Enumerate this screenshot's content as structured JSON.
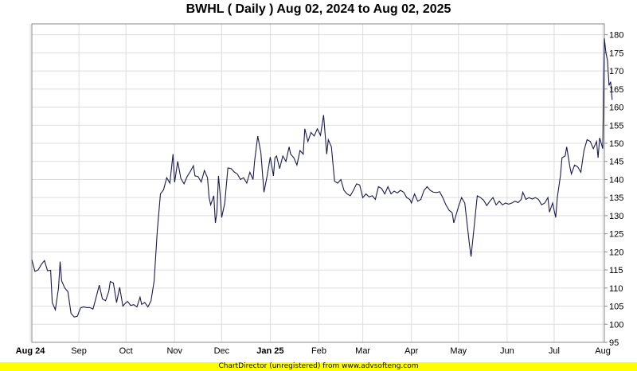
{
  "chart_data": {
    "type": "line",
    "title": "BWHL ( Daily ) Aug 02, 2024 to Aug 02, 2025",
    "xlabel": "",
    "ylabel": "",
    "ylim": [
      95,
      183
    ],
    "yticks": [
      95,
      100,
      105,
      110,
      115,
      120,
      125,
      130,
      135,
      140,
      145,
      150,
      155,
      160,
      165,
      170,
      175,
      180
    ],
    "x_range": [
      "2024-08-02",
      "2025-08-02"
    ],
    "xticks": [
      {
        "date": "2024-08-01",
        "label": "Aug 24",
        "bold": true
      },
      {
        "date": "2024-09-01",
        "label": "Sep",
        "bold": false
      },
      {
        "date": "2024-10-01",
        "label": "Oct",
        "bold": false
      },
      {
        "date": "2024-11-01",
        "label": "Nov",
        "bold": false
      },
      {
        "date": "2024-12-01",
        "label": "Dec",
        "bold": false
      },
      {
        "date": "2025-01-01",
        "label": "Jan 25",
        "bold": true
      },
      {
        "date": "2025-02-01",
        "label": "Feb",
        "bold": false
      },
      {
        "date": "2025-03-01",
        "label": "Mar",
        "bold": false
      },
      {
        "date": "2025-04-01",
        "label": "Apr",
        "bold": false
      },
      {
        "date": "2025-05-01",
        "label": "May",
        "bold": false
      },
      {
        "date": "2025-06-01",
        "label": "Jun",
        "bold": false
      },
      {
        "date": "2025-07-01",
        "label": "Jul",
        "bold": false
      },
      {
        "date": "2025-08-01",
        "label": "Aug",
        "bold": false
      }
    ],
    "grid": true,
    "legend": "none",
    "line_color": "#1a1a4e",
    "series": [
      {
        "values": [
          [
            "2024-08-02",
            117.8
          ],
          [
            "2024-08-04",
            114.6
          ],
          [
            "2024-08-06",
            115.0
          ],
          [
            "2024-08-08",
            116.5
          ],
          [
            "2024-08-10",
            117.6
          ],
          [
            "2024-08-12",
            114.8
          ],
          [
            "2024-08-14",
            114.9
          ],
          [
            "2024-08-15",
            106.0
          ],
          [
            "2024-08-17",
            104.0
          ],
          [
            "2024-08-19",
            110.0
          ],
          [
            "2024-08-20",
            117.3
          ],
          [
            "2024-08-21",
            112.0
          ],
          [
            "2024-08-23",
            110.0
          ],
          [
            "2024-08-25",
            109.0
          ],
          [
            "2024-08-27",
            103.0
          ],
          [
            "2024-08-29",
            102.0
          ],
          [
            "2024-08-31",
            102.2
          ],
          [
            "2024-09-02",
            104.5
          ],
          [
            "2024-09-04",
            104.8
          ],
          [
            "2024-09-06",
            104.6
          ],
          [
            "2024-09-08",
            104.6
          ],
          [
            "2024-09-10",
            104.2
          ],
          [
            "2024-09-12",
            107.5
          ],
          [
            "2024-09-14",
            110.8
          ],
          [
            "2024-09-16",
            107.0
          ],
          [
            "2024-09-18",
            106.5
          ],
          [
            "2024-09-20",
            109.0
          ],
          [
            "2024-09-21",
            111.8
          ],
          [
            "2024-09-23",
            111.4
          ],
          [
            "2024-09-25",
            106.0
          ],
          [
            "2024-09-27",
            110.2
          ],
          [
            "2024-09-29",
            105.0
          ],
          [
            "2024-10-01",
            106.0
          ],
          [
            "2024-10-02",
            106.3
          ],
          [
            "2024-10-04",
            105.2
          ],
          [
            "2024-10-06",
            105.4
          ],
          [
            "2024-10-08",
            104.8
          ],
          [
            "2024-10-10",
            107.5
          ],
          [
            "2024-10-11",
            105.5
          ],
          [
            "2024-10-13",
            106.0
          ],
          [
            "2024-10-15",
            104.8
          ],
          [
            "2024-10-17",
            106.5
          ],
          [
            "2024-10-19",
            112.0
          ],
          [
            "2024-10-21",
            126.0
          ],
          [
            "2024-10-23",
            136.0
          ],
          [
            "2024-10-25",
            137.2
          ],
          [
            "2024-10-27",
            140.5
          ],
          [
            "2024-10-29",
            139.0
          ],
          [
            "2024-10-31",
            147.0
          ],
          [
            "2024-11-01",
            139.2
          ],
          [
            "2024-11-03",
            145.0
          ],
          [
            "2024-11-05",
            140.3
          ],
          [
            "2024-11-07",
            138.8
          ],
          [
            "2024-11-09",
            140.8
          ],
          [
            "2024-11-11",
            142.2
          ],
          [
            "2024-11-13",
            143.8
          ],
          [
            "2024-11-14",
            141.0
          ],
          [
            "2024-11-16",
            140.8
          ],
          [
            "2024-11-18",
            139.3
          ],
          [
            "2024-11-20",
            142.5
          ],
          [
            "2024-11-22",
            140.5
          ],
          [
            "2024-11-23",
            135.0
          ],
          [
            "2024-11-24",
            133.0
          ],
          [
            "2024-11-26",
            135.5
          ],
          [
            "2024-11-27",
            128.0
          ],
          [
            "2024-11-28",
            131.0
          ],
          [
            "2024-11-29",
            141.0
          ],
          [
            "2024-11-30",
            136.0
          ],
          [
            "2024-12-01",
            129.5
          ],
          [
            "2024-12-03",
            133.5
          ],
          [
            "2024-12-05",
            143.2
          ],
          [
            "2024-12-07",
            143.0
          ],
          [
            "2024-12-09",
            142.1
          ],
          [
            "2024-12-11",
            141.5
          ],
          [
            "2024-12-13",
            140.0
          ],
          [
            "2024-12-15",
            140.5
          ],
          [
            "2024-12-17",
            139.0
          ],
          [
            "2024-12-19",
            142.0
          ],
          [
            "2024-12-21",
            140.0
          ],
          [
            "2024-12-22",
            145.0
          ],
          [
            "2024-12-24",
            152.0
          ],
          [
            "2024-12-26",
            147.5
          ],
          [
            "2024-12-28",
            136.5
          ],
          [
            "2024-12-30",
            141.0
          ],
          [
            "2025-01-01",
            146.2
          ],
          [
            "2025-01-03",
            141.0
          ],
          [
            "2025-01-04",
            146.0
          ],
          [
            "2025-01-05",
            146.5
          ],
          [
            "2025-01-07",
            143.0
          ],
          [
            "2025-01-09",
            146.5
          ],
          [
            "2025-01-11",
            145.0
          ],
          [
            "2025-01-13",
            149.0
          ],
          [
            "2025-01-14",
            147.0
          ],
          [
            "2025-01-16",
            146.0
          ],
          [
            "2025-01-18",
            144.0
          ],
          [
            "2025-01-20",
            148.0
          ],
          [
            "2025-01-22",
            147.0
          ],
          [
            "2025-01-23",
            154.0
          ],
          [
            "2025-01-25",
            150.5
          ],
          [
            "2025-01-27",
            153.0
          ],
          [
            "2025-01-29",
            152.0
          ],
          [
            "2025-01-31",
            154.0
          ],
          [
            "2025-02-02",
            152.2
          ],
          [
            "2025-02-04",
            157.8
          ],
          [
            "2025-02-06",
            147.0
          ],
          [
            "2025-02-07",
            151.0
          ],
          [
            "2025-02-09",
            149.0
          ],
          [
            "2025-02-11",
            139.5
          ],
          [
            "2025-02-13",
            139.0
          ],
          [
            "2025-02-15",
            140.0
          ],
          [
            "2025-02-17",
            137.0
          ],
          [
            "2025-02-19",
            136.0
          ],
          [
            "2025-02-21",
            135.5
          ],
          [
            "2025-02-23",
            137.0
          ],
          [
            "2025-02-25",
            138.8
          ],
          [
            "2025-02-27",
            138.5
          ],
          [
            "2025-03-01",
            135.0
          ],
          [
            "2025-03-03",
            136.0
          ],
          [
            "2025-03-05",
            135.2
          ],
          [
            "2025-03-07",
            135.5
          ],
          [
            "2025-03-09",
            134.5
          ],
          [
            "2025-03-11",
            138.0
          ],
          [
            "2025-03-13",
            137.5
          ],
          [
            "2025-03-15",
            136.0
          ],
          [
            "2025-03-17",
            138.0
          ],
          [
            "2025-03-19",
            136.0
          ],
          [
            "2025-03-21",
            136.8
          ],
          [
            "2025-03-23",
            136.3
          ],
          [
            "2025-03-25",
            137.0
          ],
          [
            "2025-03-27",
            136.5
          ],
          [
            "2025-03-29",
            135.0
          ],
          [
            "2025-03-31",
            134.5
          ],
          [
            "2025-04-01",
            133.5
          ],
          [
            "2025-04-03",
            136.0
          ],
          [
            "2025-04-05",
            134.0
          ],
          [
            "2025-04-07",
            134.5
          ],
          [
            "2025-04-09",
            137.0
          ],
          [
            "2025-04-11",
            138.0
          ],
          [
            "2025-04-13",
            137.0
          ],
          [
            "2025-04-15",
            136.5
          ],
          [
            "2025-04-17",
            136.4
          ],
          [
            "2025-04-19",
            136.6
          ],
          [
            "2025-04-21",
            135.0
          ],
          [
            "2025-04-23",
            133.0
          ],
          [
            "2025-04-25",
            131.5
          ],
          [
            "2025-04-27",
            130.8
          ],
          [
            "2025-04-28",
            128.0
          ],
          [
            "2025-05-01",
            132.5
          ],
          [
            "2025-05-03",
            135.0
          ],
          [
            "2025-05-05",
            133.5
          ],
          [
            "2025-05-08",
            122.0
          ],
          [
            "2025-05-09",
            118.7
          ],
          [
            "2025-05-11",
            127.0
          ],
          [
            "2025-05-13",
            135.5
          ],
          [
            "2025-05-15",
            135.0
          ],
          [
            "2025-05-17",
            134.3
          ],
          [
            "2025-05-19",
            132.8
          ],
          [
            "2025-05-21",
            134.0
          ],
          [
            "2025-05-23",
            135.0
          ],
          [
            "2025-05-25",
            133.0
          ],
          [
            "2025-05-27",
            134.0
          ],
          [
            "2025-05-29",
            133.0
          ],
          [
            "2025-05-31",
            133.5
          ],
          [
            "2025-06-02",
            133.2
          ],
          [
            "2025-06-04",
            133.5
          ],
          [
            "2025-06-06",
            134.0
          ],
          [
            "2025-06-08",
            133.6
          ],
          [
            "2025-06-10",
            134.5
          ],
          [
            "2025-06-11",
            136.5
          ],
          [
            "2025-06-13",
            134.5
          ],
          [
            "2025-06-15",
            135.0
          ],
          [
            "2025-06-17",
            134.6
          ],
          [
            "2025-06-19",
            135.0
          ],
          [
            "2025-06-21",
            134.5
          ],
          [
            "2025-06-23",
            133.0
          ],
          [
            "2025-06-25",
            133.5
          ],
          [
            "2025-06-27",
            135.0
          ],
          [
            "2025-06-28",
            131.0
          ],
          [
            "2025-06-30",
            133.5
          ],
          [
            "2025-07-02",
            129.5
          ],
          [
            "2025-07-03",
            135.0
          ],
          [
            "2025-07-05",
            141.0
          ],
          [
            "2025-07-06",
            146.0
          ],
          [
            "2025-07-08",
            146.5
          ],
          [
            "2025-07-09",
            149.0
          ],
          [
            "2025-07-11",
            143.5
          ],
          [
            "2025-07-12",
            141.5
          ],
          [
            "2025-07-14",
            144.0
          ],
          [
            "2025-07-16",
            143.5
          ],
          [
            "2025-07-18",
            142.0
          ],
          [
            "2025-07-20",
            148.0
          ],
          [
            "2025-07-22",
            151.0
          ],
          [
            "2025-07-24",
            150.5
          ],
          [
            "2025-07-26",
            148.5
          ],
          [
            "2025-07-28",
            150.5
          ],
          [
            "2025-07-29",
            146.0
          ],
          [
            "2025-07-30",
            151.5
          ],
          [
            "2025-07-31",
            150.0
          ],
          [
            "2025-08-01",
            148.5
          ],
          [
            "2025-08-02",
            179.0
          ],
          [
            "2025-08-03",
            175.0
          ],
          [
            "2025-08-04",
            173.0
          ],
          [
            "2025-08-05",
            166.0
          ],
          [
            "2025-08-06",
            167.0
          ],
          [
            "2025-08-07",
            162.0
          ]
        ]
      }
    ]
  },
  "footer": {
    "text": "ChartDirector (unregistered) from www.advsofteng.com",
    "background": "#ffff00"
  }
}
